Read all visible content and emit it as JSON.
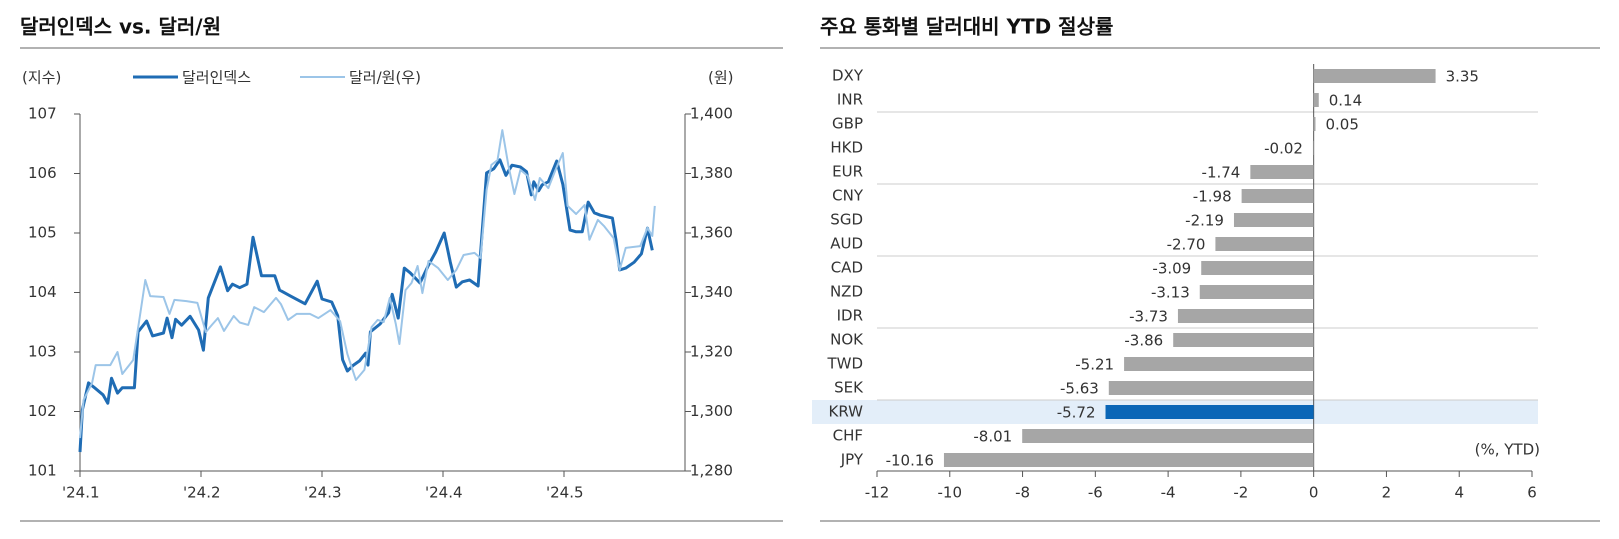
{
  "chart_data": [
    {
      "type": "line",
      "title": "달러인덱스 vs. 달러/원",
      "ylabel": "(지수)",
      "y2label": "(원)",
      "xlim": [
        0,
        5
      ],
      "xticks": [
        {
          "value": 0,
          "label": "'24.1"
        },
        {
          "value": 1,
          "label": "'24.2"
        },
        {
          "value": 2,
          "label": "'24.3"
        },
        {
          "value": 3,
          "label": "'24.4"
        },
        {
          "value": 4,
          "label": "'24.5"
        }
      ],
      "ylim": [
        101,
        107
      ],
      "yticks": [
        101,
        102,
        103,
        104,
        105,
        106,
        107
      ],
      "y2lim": [
        1280,
        1400
      ],
      "y2ticks": [
        {
          "value": 1280,
          "label": "1,280"
        },
        {
          "value": 1300,
          "label": "1,300"
        },
        {
          "value": 1320,
          "label": "1,320"
        },
        {
          "value": 1340,
          "label": "1,340"
        },
        {
          "value": 1360,
          "label": "1,360"
        },
        {
          "value": 1380,
          "label": "1,380"
        },
        {
          "value": 1400,
          "label": "1,400"
        }
      ],
      "series": [
        {
          "name": "달러인덱스",
          "color": "#1f6cb4",
          "x": [
            0,
            0.02,
            0.07,
            0.12,
            0.19,
            0.23,
            0.26,
            0.31,
            0.35,
            0.45,
            0.48,
            0.55,
            0.6,
            0.69,
            0.72,
            0.76,
            0.79,
            0.84,
            0.91,
            0.98,
            1.02,
            1.06,
            1.16,
            1.22,
            1.26,
            1.32,
            1.38,
            1.43,
            1.5,
            1.61,
            1.65,
            1.74,
            1.86,
            1.96,
            2.0,
            2.08,
            2.13,
            2.17,
            2.21,
            2.26,
            2.31,
            2.36,
            2.38,
            2.4,
            2.48,
            2.55,
            2.58,
            2.63,
            2.68,
            2.73,
            2.81,
            2.88,
            2.94,
            3.01,
            3.06,
            3.11,
            3.16,
            3.22,
            3.29,
            3.36,
            3.42,
            3.47,
            3.52,
            3.57,
            3.64,
            3.69,
            3.73,
            3.75,
            3.79,
            3.82,
            3.87,
            3.94,
            3.99,
            4.05,
            4.1,
            4.15,
            4.2,
            4.25,
            4.3,
            4.4,
            4.43,
            4.46,
            4.51,
            4.58,
            4.64,
            4.69,
            4.73
          ],
          "values": [
            101.32,
            102.03,
            102.48,
            102.4,
            102.28,
            102.14,
            102.56,
            102.31,
            102.4,
            102.4,
            103.34,
            103.52,
            103.27,
            103.32,
            103.57,
            103.24,
            103.55,
            103.45,
            103.6,
            103.37,
            103.03,
            103.91,
            104.43,
            104.03,
            104.14,
            104.08,
            104.14,
            104.93,
            104.28,
            104.28,
            104.04,
            103.94,
            103.81,
            104.19,
            103.89,
            103.84,
            103.61,
            102.87,
            102.68,
            102.78,
            102.85,
            102.98,
            102.78,
            103.34,
            103.47,
            103.66,
            103.97,
            103.57,
            104.41,
            104.33,
            104.16,
            104.46,
            104.68,
            105.0,
            104.51,
            104.09,
            104.18,
            104.21,
            104.11,
            106.01,
            106.08,
            106.23,
            105.97,
            106.14,
            106.11,
            106.03,
            105.64,
            105.86,
            105.71,
            105.81,
            105.86,
            106.21,
            105.82,
            105.05,
            105.02,
            105.02,
            105.52,
            105.34,
            105.3,
            105.25,
            104.88,
            104.38,
            104.41,
            104.51,
            104.65,
            105.08,
            104.71
          ]
        },
        {
          "name": "달러/원(우)",
          "color": "#9cc5e8",
          "axis": "y2",
          "x": [
            0,
            0.03,
            0.1,
            0.13,
            0.25,
            0.31,
            0.35,
            0.44,
            0.5,
            0.54,
            0.58,
            0.69,
            0.74,
            0.78,
            0.88,
            0.97,
            1.04,
            1.09,
            1.14,
            1.19,
            1.27,
            1.32,
            1.39,
            1.44,
            1.52,
            1.62,
            1.66,
            1.72,
            1.79,
            1.9,
            1.97,
            2.07,
            2.15,
            2.21,
            2.28,
            2.35,
            2.41,
            2.46,
            2.51,
            2.56,
            2.61,
            2.64,
            2.69,
            2.74,
            2.79,
            2.83,
            2.88,
            2.96,
            3.04,
            3.11,
            3.17,
            3.26,
            3.31,
            3.36,
            3.4,
            3.45,
            3.49,
            3.54,
            3.59,
            3.64,
            3.7,
            3.76,
            3.8,
            3.87,
            3.93,
            3.99,
            4.03,
            4.1,
            4.17,
            4.21,
            4.28,
            4.33,
            4.41,
            4.46,
            4.51,
            4.63,
            4.69,
            4.73,
            4.75
          ],
          "values": [
            1291.1,
            1303.9,
            1309.6,
            1315.6,
            1315.6,
            1320.0,
            1312.6,
            1317.3,
            1333.4,
            1344.2,
            1338.8,
            1338.5,
            1332.8,
            1337.5,
            1337.1,
            1336.5,
            1326.7,
            1329.1,
            1331.4,
            1327.1,
            1332.1,
            1329.9,
            1329.1,
            1335.1,
            1333.4,
            1338.2,
            1336.1,
            1330.8,
            1332.8,
            1332.8,
            1331.4,
            1334.1,
            1330.4,
            1319.3,
            1310.6,
            1314.0,
            1328.4,
            1330.8,
            1330.1,
            1338.2,
            1329.4,
            1322.7,
            1340.8,
            1343.2,
            1348.9,
            1339.8,
            1350.6,
            1348.2,
            1344.2,
            1347.6,
            1352.6,
            1353.3,
            1351.6,
            1374.5,
            1382.9,
            1384.5,
            1394.6,
            1382.9,
            1373.1,
            1381.2,
            1379.2,
            1371.1,
            1378.5,
            1375.1,
            1381.2,
            1386.9,
            1369.1,
            1366.4,
            1369.4,
            1357.7,
            1364.4,
            1362.4,
            1358.3,
            1347.6,
            1355.0,
            1355.6,
            1361.7,
            1359.0,
            1369.1
          ]
        }
      ]
    },
    {
      "type": "bar",
      "orientation": "horizontal",
      "title": "주요 통화별 달러대비 YTD 절상률",
      "annotation": "(%, YTD)",
      "categories": [
        "DXY",
        "INR",
        "GBP",
        "HKD",
        "EUR",
        "CNY",
        "SGD",
        "AUD",
        "CAD",
        "NZD",
        "IDR",
        "NOK",
        "TWD",
        "SEK",
        "KRW",
        "CHF",
        "JPY"
      ],
      "values": [
        3.35,
        0.14,
        0.05,
        -0.02,
        -1.74,
        -1.98,
        -2.19,
        -2.7,
        -3.09,
        -3.13,
        -3.73,
        -3.86,
        -5.21,
        -5.63,
        -5.72,
        -8.01,
        -10.16
      ],
      "value_labels": [
        "3.35",
        "0.14",
        "0.05",
        "-0.02",
        "-1.74",
        "-1.98",
        "-2.19",
        "-2.70",
        "-3.09",
        "-3.13",
        "-3.73",
        "-3.86",
        "-5.21",
        "-5.63",
        "-5.72",
        "-8.01",
        "-10.16"
      ],
      "color": "#a6a6a6",
      "colors": [
        "#a6a6a6",
        "#a6a6a6",
        "#a6a6a6",
        "#a6a6a6",
        "#a6a6a6",
        "#a6a6a6",
        "#a6a6a6",
        "#a6a6a6",
        "#a6a6a6",
        "#a6a6a6",
        "#a6a6a6",
        "#a6a6a6",
        "#a6a6a6",
        "#a6a6a6",
        "#0a66b7",
        "#a6a6a6",
        "#a6a6a6"
      ],
      "xlim": [
        -12,
        6
      ],
      "xticks": [
        -12,
        -10,
        -8,
        -6,
        -4,
        -2,
        0,
        2,
        4,
        6
      ]
    }
  ]
}
